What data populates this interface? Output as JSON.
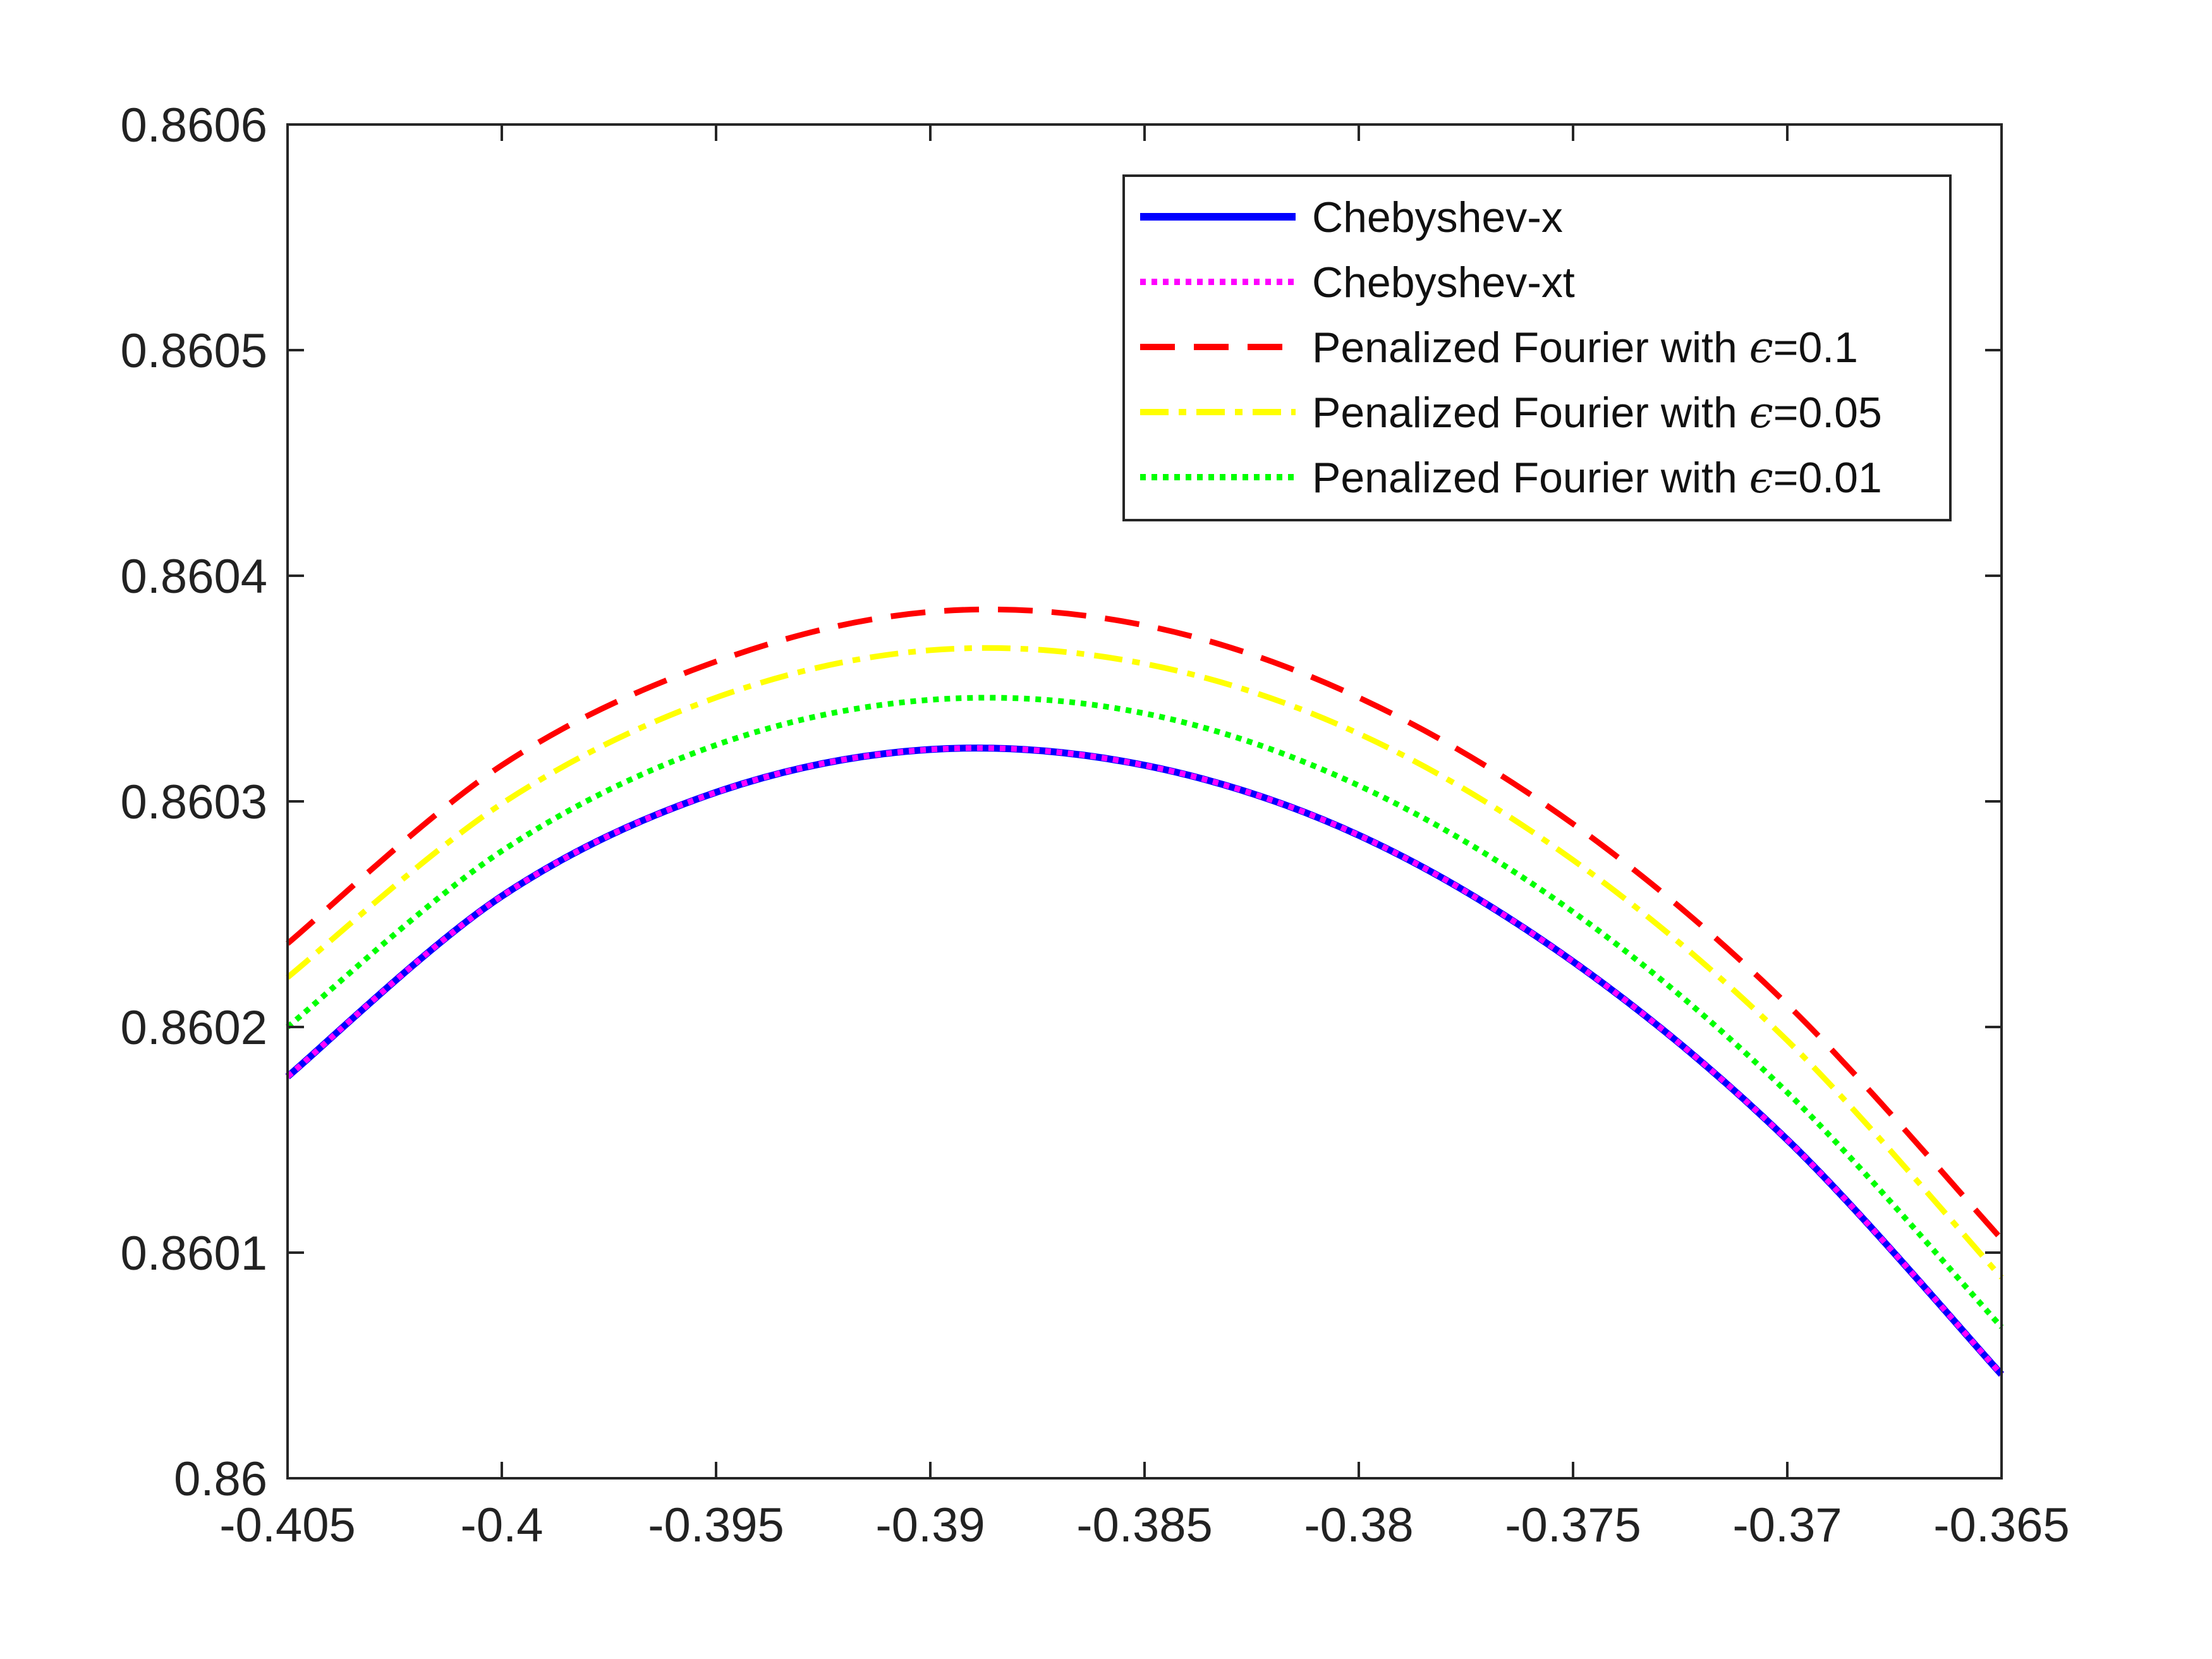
{
  "chart_data": {
    "type": "line",
    "title": "",
    "xlabel": "",
    "ylabel": "",
    "xlim": [
      -0.405,
      -0.365
    ],
    "ylim": [
      0.86,
      0.8606
    ],
    "x_ticks": [
      "-0.405",
      "-0.4",
      "-0.395",
      "-0.39",
      "-0.385",
      "-0.38",
      "-0.375",
      "-0.37",
      "-0.365"
    ],
    "y_ticks": [
      "0.86",
      "0.8601",
      "0.8602",
      "0.8603",
      "0.8604",
      "0.8605",
      "0.8606"
    ],
    "grid": false,
    "legend_position": "top-right",
    "x": [
      -0.405,
      -0.4,
      -0.395,
      -0.39,
      -0.385,
      -0.38,
      -0.375,
      -0.37,
      -0.365
    ],
    "series": [
      {
        "name": "Chebyshev-x",
        "legend_prefix": "Chebyshev-x",
        "epsilon": "",
        "color": "#0000ff",
        "style": "solid",
        "values": [
          0.860178,
          0.860258,
          0.860304,
          0.860323,
          0.860316,
          0.860285,
          0.860229,
          0.86015,
          0.860046
        ]
      },
      {
        "name": "Chebyshev-xt",
        "legend_prefix": "Chebyshev-xt",
        "epsilon": "",
        "color": "#ff00ff",
        "style": "dotted",
        "values": [
          0.860178,
          0.860258,
          0.860304,
          0.860323,
          0.860316,
          0.860285,
          0.860229,
          0.86015,
          0.860046
        ]
      },
      {
        "name": "Penalized Fourier with ϵ=0.1",
        "legend_prefix": "Penalized Fourier with ",
        "epsilon": "ϵ",
        "legend_suffix": "=0.1",
        "color": "#ff0000",
        "style": "dashed",
        "values": [
          0.860237,
          0.860316,
          0.860362,
          0.860384,
          0.860378,
          0.860346,
          0.86029,
          0.86021,
          0.860106
        ]
      },
      {
        "name": "Penalized Fourier with ϵ=0.05",
        "legend_prefix": "Penalized Fourier with ",
        "epsilon": "ϵ",
        "legend_suffix": "=0.05",
        "color": "#ffff00",
        "style": "dashdot",
        "values": [
          0.860222,
          0.860299,
          0.860346,
          0.860367,
          0.860361,
          0.86033,
          0.860274,
          0.860194,
          0.860089
        ]
      },
      {
        "name": "Penalized Fourier with ϵ=0.01",
        "legend_prefix": "Penalized Fourier with ",
        "epsilon": "ϵ",
        "legend_suffix": "=0.01",
        "color": "#00ff00",
        "style": "dotted",
        "values": [
          0.8602,
          0.860278,
          0.860325,
          0.860345,
          0.860339,
          0.860307,
          0.860251,
          0.860171,
          0.860067
        ]
      }
    ]
  }
}
